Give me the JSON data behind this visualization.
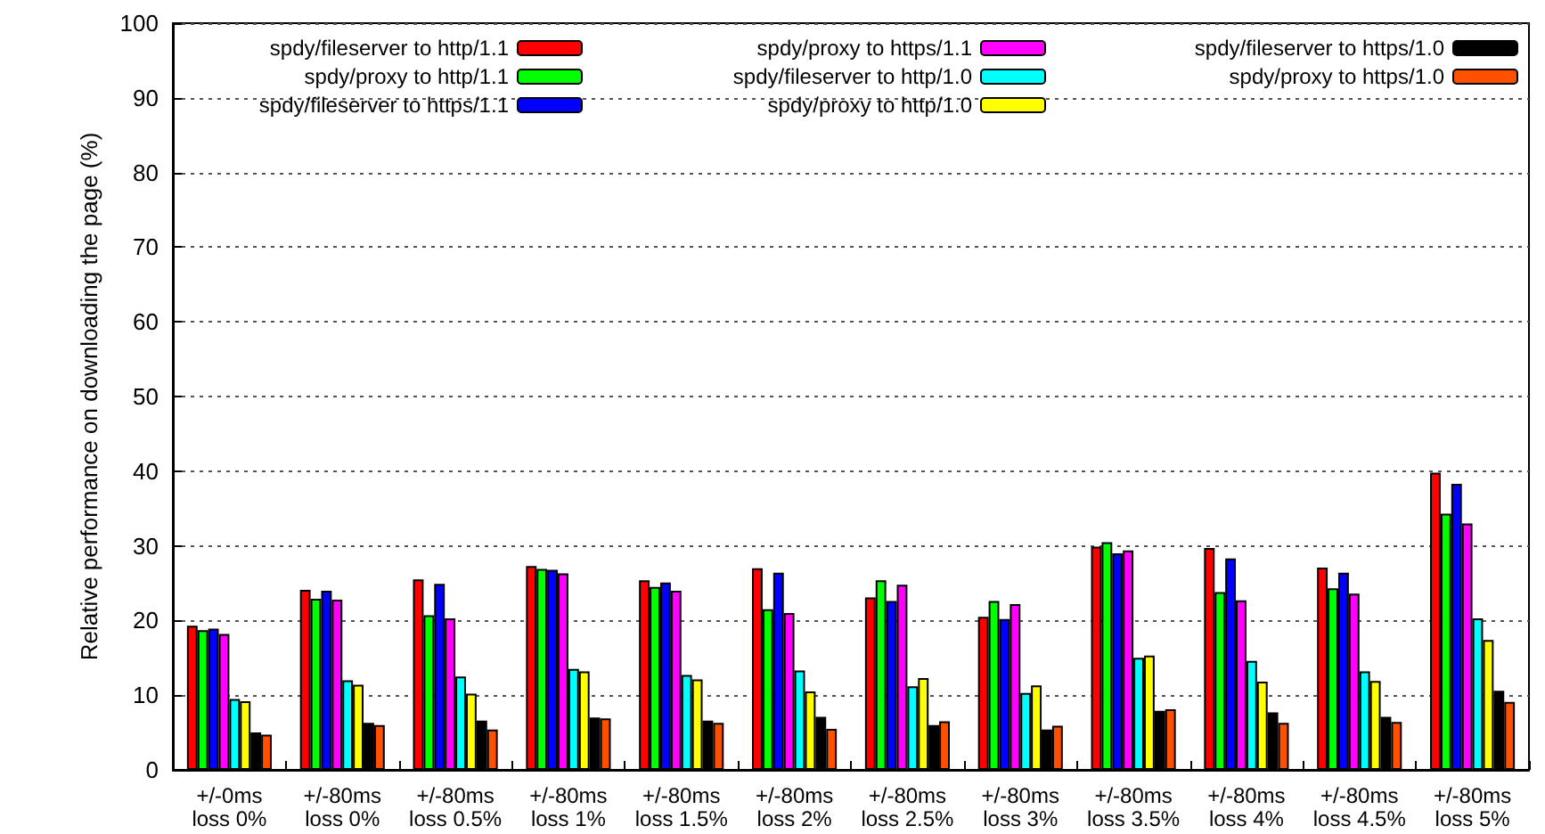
{
  "chart_data": {
    "type": "bar",
    "ylabel": "Relative performance on downloading the page (%)",
    "categories": [
      "+/-0ms\nloss 0%",
      "+/-80ms\nloss 0%",
      "+/-80ms\nloss 0.5%",
      "+/-80ms\nloss 1%",
      "+/-80ms\nloss 1.5%",
      "+/-80ms\nloss 2%",
      "+/-80ms\nloss 2.5%",
      "+/-80ms\nloss 3%",
      "+/-80ms\nloss 3.5%",
      "+/-80ms\nloss 4%",
      "+/-80ms\nloss 4.5%",
      "+/-80ms\nloss 5%"
    ],
    "series": [
      {
        "name": "spdy/fileserver to http/1.1",
        "color": "#ff0000",
        "values": [
          19.3,
          24.1,
          25.5,
          27.3,
          25.4,
          27.0,
          23.1,
          20.5,
          29.9,
          29.7,
          27.1,
          39.8
        ]
      },
      {
        "name": "spdy/proxy to http/1.1",
        "color": "#00ff00",
        "values": [
          18.7,
          22.9,
          20.7,
          26.9,
          24.5,
          21.5,
          25.4,
          22.6,
          30.5,
          23.8,
          24.3,
          34.3
        ]
      },
      {
        "name": "spdy/fileserver to https/1.1",
        "color": "#0000ff",
        "values": [
          18.9,
          24.0,
          24.9,
          26.8,
          25.1,
          26.4,
          22.6,
          20.2,
          29.0,
          28.3,
          26.4,
          38.3
        ]
      },
      {
        "name": "spdy/proxy to https/1.1",
        "color": "#ff00ff",
        "values": [
          18.2,
          22.8,
          20.3,
          26.3,
          24.0,
          21.0,
          24.8,
          22.2,
          29.4,
          22.7,
          23.6,
          33.0
        ]
      },
      {
        "name": "spdy/fileserver to http/1.0",
        "color": "#00ffff",
        "values": [
          9.5,
          12.0,
          12.5,
          13.5,
          12.7,
          13.3,
          11.2,
          10.3,
          15.0,
          14.6,
          13.2,
          20.3
        ]
      },
      {
        "name": "spdy/proxy to http/1.0",
        "color": "#ffff00",
        "values": [
          9.2,
          11.4,
          10.2,
          13.2,
          12.1,
          10.5,
          12.3,
          11.3,
          15.3,
          11.8,
          11.9,
          17.4
        ]
      },
      {
        "name": "spdy/fileserver to https/1.0",
        "color": "#000000",
        "values": [
          5.0,
          6.3,
          6.6,
          7.0,
          6.6,
          7.1,
          6.0,
          5.4,
          7.9,
          7.7,
          7.1,
          10.6
        ]
      },
      {
        "name": "spdy/proxy to https/1.0",
        "color": "#ff5000",
        "values": [
          4.7,
          6.0,
          5.4,
          6.9,
          6.3,
          5.5,
          6.5,
          5.9,
          8.1,
          6.3,
          6.4,
          9.1
        ]
      }
    ],
    "ylim": [
      0,
      100
    ],
    "yticks": [
      0,
      10,
      20,
      30,
      40,
      50,
      60,
      70,
      80,
      90,
      100
    ],
    "grid": "y",
    "legend": "top"
  }
}
